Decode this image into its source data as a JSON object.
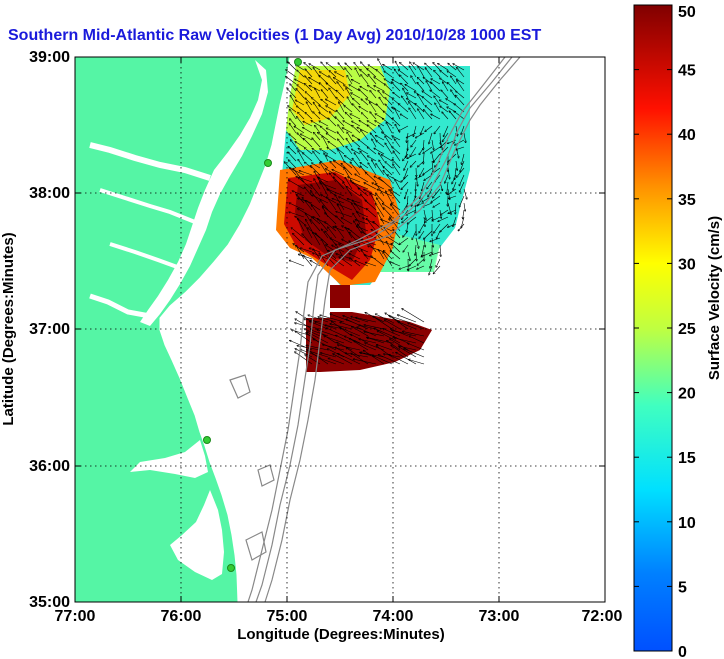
{
  "title": "Southern Mid-Atlantic Raw Velocities (1 Day Avg) 2010/10/28 1000 EST",
  "x_axis": {
    "label": "Longitude (Degrees:Minutes)",
    "ticks": [
      "77:00",
      "76:00",
      "75:00",
      "74:00",
      "73:00",
      "72:00"
    ]
  },
  "y_axis": {
    "label": "Latitude (Degrees:Minutes)",
    "ticks": [
      "39:00",
      "38:00",
      "37:00",
      "36:00",
      "35:00"
    ]
  },
  "colorbar": {
    "label": "Surface Velocity (cm/s)",
    "ticks": [
      "50",
      "45",
      "40",
      "35",
      "30",
      "25",
      "20",
      "15",
      "10",
      "5",
      "0"
    ],
    "min": 0,
    "max": 50
  },
  "colors": {
    "land": "#55f5a5",
    "title": "#1a1adb",
    "bathymetry": "#888888",
    "station": "#33cc33"
  }
}
